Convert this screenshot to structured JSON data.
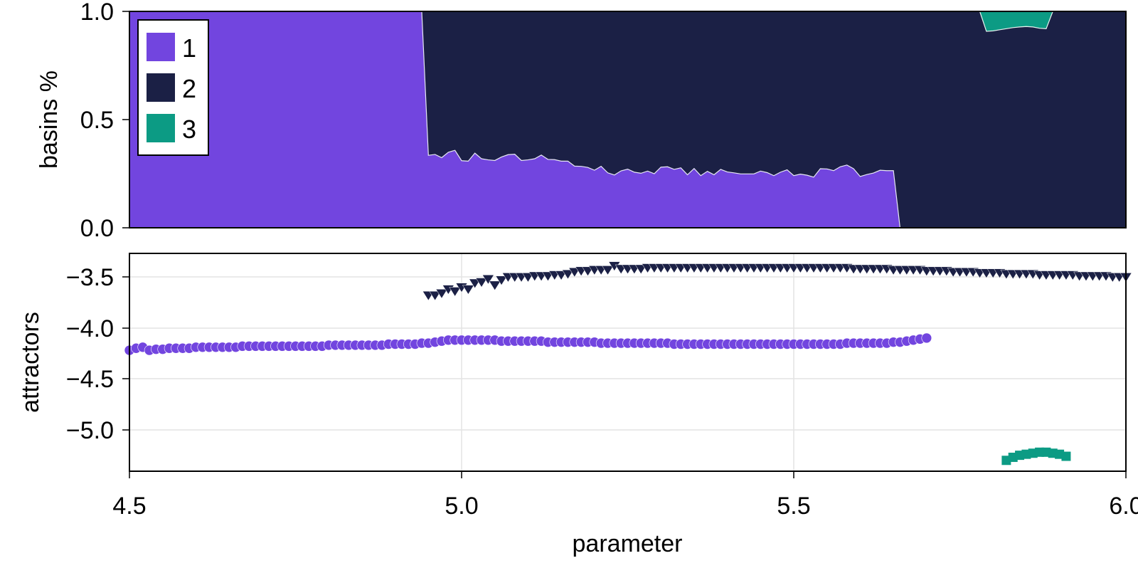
{
  "figure": {
    "xlabel": "parameter",
    "top_ylabel": "basins %",
    "bottom_ylabel": "attractors",
    "x_ticks": [
      "4.5",
      "5.0",
      "5.5",
      "6.0"
    ],
    "top_y_ticks": [
      "0.0",
      "0.5",
      "1.0"
    ],
    "bottom_y_ticks": [
      "−3.5",
      "−4.0",
      "−4.5",
      "−5.0"
    ],
    "legend": [
      {
        "label": "1",
        "color": "#7245df"
      },
      {
        "label": "2",
        "color": "#1b2045"
      },
      {
        "label": "3",
        "color": "#0c9b84"
      }
    ]
  },
  "chart_data": [
    {
      "type": "area",
      "stacked": true,
      "title": "",
      "xlabel": "",
      "ylabel": "basins %",
      "xlim": [
        4.5,
        6.0
      ],
      "ylim": [
        0.0,
        1.0
      ],
      "grid": false,
      "legend_position": "top-left inside",
      "series": [
        {
          "name": "1",
          "color": "#7245df",
          "segments": [
            {
              "x_start": 4.5,
              "x_end": 4.94,
              "value": 1.0
            },
            {
              "x_start": 4.95,
              "x_step": 0.01,
              "values": [
                0.335,
                0.339,
                0.324,
                0.349,
                0.358,
                0.31,
                0.308,
                0.345,
                0.319,
                0.314,
                0.311,
                0.327,
                0.338,
                0.34,
                0.311,
                0.314,
                0.319,
                0.336,
                0.316,
                0.315,
                0.308,
                0.308,
                0.285,
                0.284,
                0.279,
                0.266,
                0.284,
                0.254,
                0.244,
                0.263,
                0.271,
                0.257,
                0.252,
                0.262,
                0.25,
                0.28,
                0.282,
                0.27,
                0.277,
                0.245,
                0.274,
                0.241,
                0.261,
                0.245,
                0.27,
                0.258,
                0.254,
                0.249,
                0.249,
                0.249,
                0.262,
                0.255,
                0.241,
                0.257,
                0.268,
                0.241,
                0.248,
                0.243,
                0.234,
                0.273,
                0.272,
                0.264,
                0.282,
                0.29,
                0.273,
                0.237,
                0.246,
                0.253,
                0.266,
                0.264,
                0.264
              ]
            },
            {
              "x_start": 5.66,
              "x_end": 6.0,
              "value": 0.0
            }
          ]
        },
        {
          "name": "2",
          "color": "#1b2045",
          "description": "remainder: 1 - basin1 - basin3"
        },
        {
          "name": "3",
          "color": "#0c9b84",
          "segments": [
            {
              "x_start": 5.79,
              "x_step": 0.01,
              "values": [
                0.092,
                0.09,
                0.085,
                0.08,
                0.075,
                0.072,
                0.07,
                0.072,
                0.078,
                0.08
              ]
            }
          ]
        }
      ]
    },
    {
      "type": "scatter",
      "title": "",
      "xlabel": "parameter",
      "ylabel": "attractors",
      "xlim": [
        4.5,
        6.0
      ],
      "ylim": [
        -5.38,
        -3.27
      ],
      "grid": true,
      "series": [
        {
          "name": "1",
          "marker": "circle",
          "color": "#7245df",
          "x_start": 4.5,
          "x_step": 0.01,
          "values": [
            -4.22,
            -4.2,
            -4.19,
            -4.22,
            -4.21,
            -4.21,
            -4.2,
            -4.2,
            -4.2,
            -4.2,
            -4.19,
            -4.19,
            -4.19,
            -4.19,
            -4.19,
            -4.19,
            -4.19,
            -4.18,
            -4.18,
            -4.18,
            -4.18,
            -4.18,
            -4.18,
            -4.18,
            -4.18,
            -4.18,
            -4.18,
            -4.18,
            -4.18,
            -4.18,
            -4.17,
            -4.17,
            -4.17,
            -4.17,
            -4.17,
            -4.17,
            -4.17,
            -4.17,
            -4.17,
            -4.16,
            -4.16,
            -4.16,
            -4.16,
            -4.16,
            -4.15,
            -4.15,
            -4.14,
            -4.13,
            -4.12,
            -4.12,
            -4.12,
            -4.12,
            -4.12,
            -4.12,
            -4.12,
            -4.12,
            -4.13,
            -4.13,
            -4.13,
            -4.13,
            -4.13,
            -4.13,
            -4.13,
            -4.14,
            -4.14,
            -4.14,
            -4.14,
            -4.14,
            -4.14,
            -4.14,
            -4.14,
            -4.15,
            -4.15,
            -4.15,
            -4.15,
            -4.15,
            -4.15,
            -4.15,
            -4.15,
            -4.15,
            -4.15,
            -4.15,
            -4.16,
            -4.16,
            -4.16,
            -4.16,
            -4.16,
            -4.16,
            -4.16,
            -4.16,
            -4.16,
            -4.16,
            -4.16,
            -4.16,
            -4.16,
            -4.16,
            -4.16,
            -4.16,
            -4.16,
            -4.16,
            -4.16,
            -4.16,
            -4.16,
            -4.16,
            -4.16,
            -4.16,
            -4.16,
            -4.16,
            -4.15,
            -4.15,
            -4.15,
            -4.15,
            -4.15,
            -4.15,
            -4.15,
            -4.14,
            -4.14,
            -4.13,
            -4.12,
            -4.11,
            -4.1
          ]
        },
        {
          "name": "2",
          "marker": "triangle-down",
          "color": "#1b2045",
          "x_start": 4.95,
          "x_step": 0.01,
          "values": [
            -3.68,
            -3.68,
            -3.66,
            -3.62,
            -3.64,
            -3.6,
            -3.62,
            -3.56,
            -3.55,
            -3.52,
            -3.58,
            -3.53,
            -3.5,
            -3.5,
            -3.5,
            -3.5,
            -3.49,
            -3.49,
            -3.49,
            -3.48,
            -3.48,
            -3.47,
            -3.45,
            -3.44,
            -3.44,
            -3.43,
            -3.43,
            -3.43,
            -3.39,
            -3.42,
            -3.42,
            -3.42,
            -3.42,
            -3.41,
            -3.41,
            -3.41,
            -3.41,
            -3.41,
            -3.41,
            -3.41,
            -3.41,
            -3.41,
            -3.41,
            -3.41,
            -3.41,
            -3.41,
            -3.41,
            -3.41,
            -3.41,
            -3.41,
            -3.41,
            -3.41,
            -3.41,
            -3.41,
            -3.41,
            -3.41,
            -3.41,
            -3.41,
            -3.41,
            -3.41,
            -3.41,
            -3.41,
            -3.41,
            -3.41,
            -3.42,
            -3.42,
            -3.42,
            -3.42,
            -3.42,
            -3.42,
            -3.43,
            -3.43,
            -3.43,
            -3.43,
            -3.43,
            -3.44,
            -3.44,
            -3.44,
            -3.44,
            -3.45,
            -3.45,
            -3.45,
            -3.45,
            -3.46,
            -3.46,
            -3.46,
            -3.46,
            -3.47,
            -3.47,
            -3.47,
            -3.47,
            -3.47,
            -3.48,
            -3.48,
            -3.48,
            -3.48,
            -3.48,
            -3.48,
            -3.49,
            -3.49,
            -3.49,
            -3.49,
            -3.49,
            -3.5,
            -3.5,
            -3.5
          ]
        },
        {
          "name": "3",
          "marker": "square",
          "color": "#0c9b84",
          "x_start": 5.82,
          "x_step": 0.01,
          "values": [
            -5.3,
            -5.27,
            -5.25,
            -5.24,
            -5.23,
            -5.22,
            -5.22,
            -5.23,
            -5.24,
            -5.26
          ]
        }
      ]
    }
  ]
}
